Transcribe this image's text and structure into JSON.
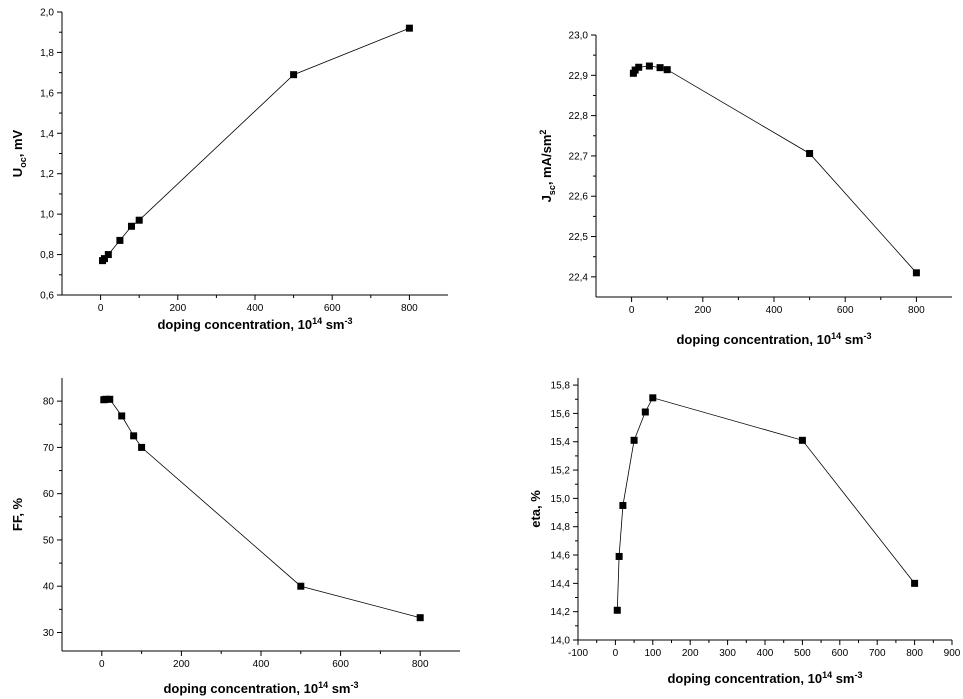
{
  "chart_data": [
    {
      "type": "line",
      "title": "",
      "xlabel": "doping concentration, 10",
      "xlabel_sup": "14",
      "xlabel_unit": " sm",
      "xlabel_unit_sup": "-3",
      "ylabel_main": "U",
      "ylabel_sub": "oc",
      "ylabel_rest": ", mV",
      "xlim": [
        -100,
        900
      ],
      "ylim": [
        0.6,
        2.0
      ],
      "x_ticks": [
        "0",
        "200",
        "400",
        "600",
        "800"
      ],
      "y_ticks": [
        "0,6",
        "0,8",
        "1,0",
        "1,2",
        "1,4",
        "1,6",
        "1,8",
        "2,0"
      ],
      "grid": false,
      "series": [
        {
          "x": [
            5,
            10,
            20,
            50,
            80,
            100,
            500,
            800
          ],
          "y": [
            0.77,
            0.78,
            0.8,
            0.87,
            0.94,
            0.97,
            1.69,
            1.92
          ]
        }
      ]
    },
    {
      "type": "line",
      "title": "",
      "xlabel": "doping concentration, 10",
      "xlabel_sup": "14",
      "xlabel_unit": " sm",
      "xlabel_unit_sup": "-3",
      "ylabel_main": "J",
      "ylabel_sub": "sc",
      "ylabel_rest": ", mA/sm",
      "ylabel_sup": "2",
      "xlim": [
        -100,
        900
      ],
      "ylim": [
        22.35,
        23.0
      ],
      "x_ticks": [
        "0",
        "200",
        "400",
        "600",
        "800"
      ],
      "y_ticks": [
        "22,4",
        "22,5",
        "22,6",
        "22,7",
        "22,8",
        "22,9",
        "23,0"
      ],
      "grid": false,
      "series": [
        {
          "x": [
            5,
            10,
            20,
            50,
            80,
            100,
            500,
            800
          ],
          "y": [
            22.905,
            22.913,
            22.92,
            22.923,
            22.919,
            22.914,
            22.706,
            22.41
          ]
        }
      ]
    },
    {
      "type": "line",
      "title": "",
      "xlabel": "doping concentration, 10",
      "xlabel_sup": "14",
      "xlabel_unit": " sm",
      "xlabel_unit_sup": "-3",
      "ylabel_main": "FF, %",
      "xlim": [
        -100,
        900
      ],
      "ylim": [
        26,
        85
      ],
      "x_ticks": [
        "0",
        "200",
        "400",
        "600",
        "800"
      ],
      "y_ticks": [
        "30",
        "40",
        "50",
        "60",
        "70",
        "80"
      ],
      "grid": false,
      "series": [
        {
          "x": [
            5,
            10,
            20,
            50,
            80,
            100,
            500,
            800
          ],
          "y": [
            80.3,
            80.4,
            80.4,
            76.8,
            72.5,
            70.0,
            40.0,
            33.2
          ]
        }
      ]
    },
    {
      "type": "line",
      "title": "",
      "xlabel": "doping concentration, 10",
      "xlabel_sup": "14",
      "xlabel_unit": " sm",
      "xlabel_unit_sup": "-3",
      "ylabel_main": "eta, %",
      "xlim": [
        -100,
        900
      ],
      "ylim": [
        14.0,
        15.85
      ],
      "x_ticks": [
        "-100",
        "0",
        "100",
        "200",
        "300",
        "400",
        "500",
        "600",
        "700",
        "800",
        "900"
      ],
      "y_ticks": [
        "14,0",
        "14,2",
        "14,4",
        "14,6",
        "14,8",
        "15,0",
        "15,2",
        "15,4",
        "15,6",
        "15,8"
      ],
      "grid": false,
      "series": [
        {
          "x": [
            5,
            10,
            20,
            50,
            80,
            100,
            500,
            800
          ],
          "y": [
            14.21,
            14.59,
            14.95,
            15.41,
            15.61,
            15.71,
            15.41,
            14.4
          ]
        }
      ]
    }
  ]
}
